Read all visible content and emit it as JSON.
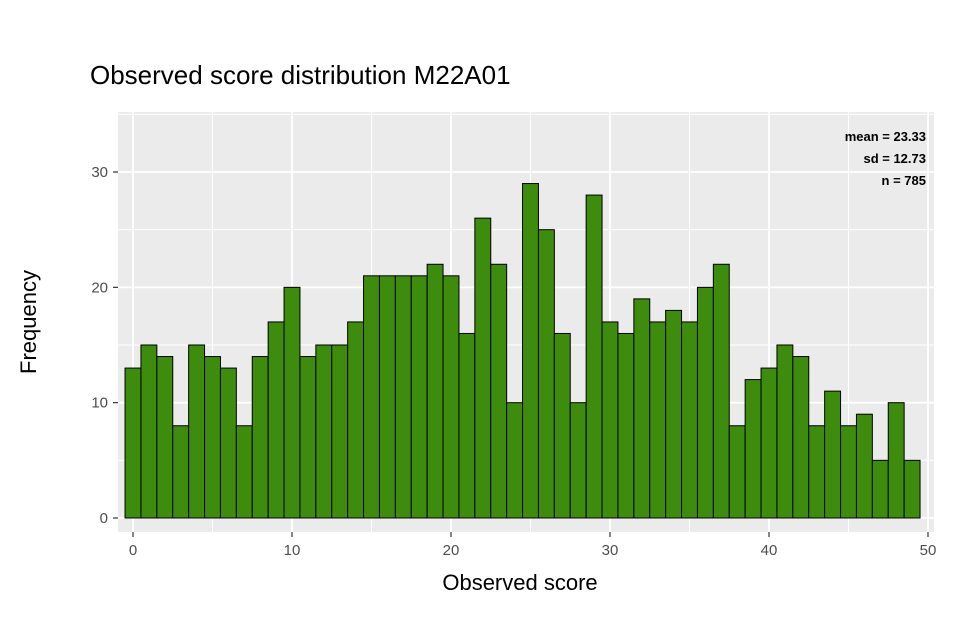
{
  "chart_data": {
    "type": "bar",
    "subtype": "histogram",
    "title": "Observed score distribution M22A01",
    "xlabel": "Observed score",
    "ylabel": "Frequency",
    "x": [
      0,
      1,
      2,
      3,
      4,
      5,
      6,
      7,
      8,
      9,
      10,
      11,
      12,
      13,
      14,
      15,
      16,
      17,
      18,
      19,
      20,
      21,
      22,
      23,
      24,
      25,
      26,
      27,
      28,
      29,
      30,
      31,
      32,
      33,
      34,
      35,
      36,
      37,
      38,
      39,
      40,
      41,
      42,
      43,
      44,
      45,
      46,
      47,
      48,
      49
    ],
    "values": [
      13,
      15,
      14,
      8,
      15,
      14,
      13,
      8,
      14,
      17,
      20,
      14,
      15,
      15,
      17,
      21,
      21,
      21,
      21,
      22,
      21,
      16,
      26,
      22,
      10,
      29,
      25,
      16,
      10,
      28,
      17,
      16,
      19,
      17,
      18,
      17,
      20,
      22,
      8,
      12,
      13,
      15,
      14,
      8,
      11,
      8,
      9,
      5,
      10,
      5
    ],
    "x_ticks": [
      0,
      10,
      20,
      30,
      40,
      50
    ],
    "y_ticks": [
      0,
      10,
      20,
      30
    ],
    "x_minor_ticks": [
      5,
      15,
      25,
      35,
      45
    ],
    "y_minor_ticks": [
      5,
      15,
      25,
      35
    ],
    "xlim": [
      -0.9,
      50.3
    ],
    "ylim": [
      0,
      30
    ],
    "bin_width": 1,
    "grid": true,
    "legend": "none",
    "annotation": [
      "mean = 23.33",
      "sd = 12.73",
      "n =  785"
    ],
    "stats": {
      "mean": 23.33,
      "sd": 12.73,
      "n": 785
    },
    "colors": {
      "bar_fill": "#3d8c0d",
      "bar_border": "#000000",
      "panel_bg": "#ebebeb",
      "grid": "#ffffff",
      "tick_text": "#4d4d4d",
      "axis_text": "#000000"
    }
  }
}
